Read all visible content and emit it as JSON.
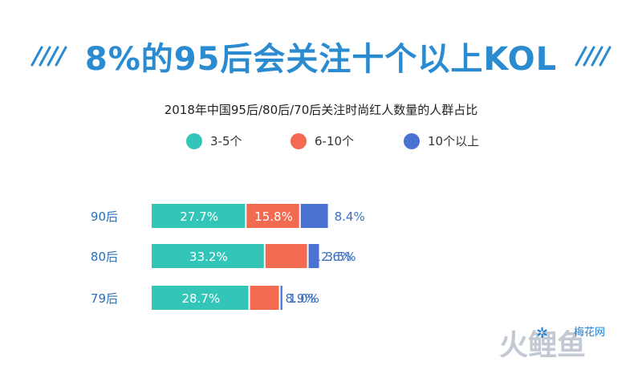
{
  "headline": "8%的95后会关注十个以上KOL",
  "chart_data": {
    "type": "bar",
    "stacked": true,
    "orientation": "horizontal",
    "normalized": true,
    "title": "2018年中国95后/80后/70后关注时尚红人数量的人群占比",
    "categories": [
      "90后",
      "80后",
      "79后"
    ],
    "series": [
      {
        "name": "3-5个",
        "color": "#33c6b8",
        "values": [
          27.7,
          33.2,
          28.7
        ],
        "labels": [
          "27.7%",
          "33.2%",
          "28.7%"
        ]
      },
      {
        "name": "6-10个",
        "color": "#f26b50",
        "values": [
          15.8,
          12.6,
          8.9
        ],
        "labels": [
          "15.8%",
          "12.6%",
          "8.9%"
        ]
      },
      {
        "name": "10个以上",
        "color": "#4a72d2",
        "values": [
          8.4,
          3.5,
          1.0
        ],
        "labels": [
          "8.4%",
          "3.5%",
          "1.0%"
        ]
      }
    ],
    "legend_position": "top",
    "grid": false
  },
  "watermark": {
    "brand": "火鲤鱼",
    "site": "梅花网"
  }
}
